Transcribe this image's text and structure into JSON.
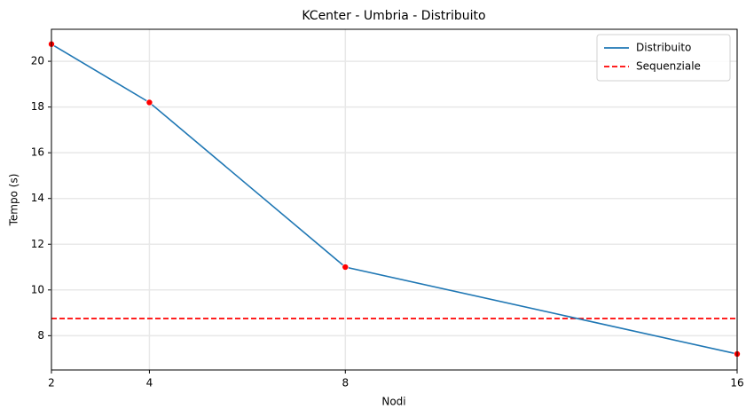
{
  "chart_data": {
    "type": "line",
    "title": "KCenter - Umbria - Distribuito",
    "x_label": "Nodi",
    "y_label": "Tempo (s)",
    "x": [
      2,
      4,
      8,
      16
    ],
    "series": [
      {
        "name": "Distribuito",
        "color": "#1f77b4",
        "marker_color": "#ff0000",
        "values": [
          20.75,
          18.2,
          11.0,
          7.2
        ]
      }
    ],
    "hlines": [
      {
        "name": "Sequenziale",
        "color": "#ff0000",
        "linestyle": "dashed",
        "value": 8.75
      }
    ],
    "xlim": [
      2,
      16
    ],
    "xticks": [
      2,
      4,
      8,
      16
    ],
    "ylim": [
      6.5,
      21.4
    ],
    "yticks": [
      8,
      10,
      12,
      14,
      16,
      18,
      20
    ],
    "grid": true,
    "legend": "upper right"
  }
}
